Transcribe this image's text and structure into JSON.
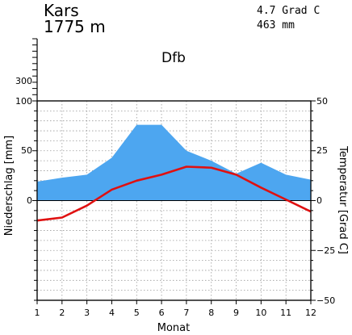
{
  "station": {
    "name": "Kars",
    "elevation": "1775 m"
  },
  "stats": {
    "temperature": "4.7 Grad C",
    "precipitation": "463 mm"
  },
  "climate_class": "Dfb",
  "chart_data": {
    "type": "area",
    "xlabel": "Monat",
    "x": [
      1,
      2,
      3,
      4,
      5,
      6,
      7,
      8,
      9,
      10,
      11,
      12
    ],
    "xlim": [
      1,
      12
    ],
    "xticks": [
      "1",
      "2",
      "3",
      "4",
      "5",
      "6",
      "7",
      "8",
      "9",
      "10",
      "11",
      "12"
    ],
    "left_axis": {
      "label": "Niederschlag [mm]",
      "ylim": [
        -100,
        100
      ],
      "ticks": [
        100,
        50,
        0
      ],
      "upper_ticks": [
        "300"
      ]
    },
    "right_axis": {
      "label": "Temperatur [Grad C]",
      "ylim": [
        -50,
        50
      ],
      "ticks": [
        "50",
        "25",
        "0",
        "−25",
        "−50"
      ]
    },
    "grid": true,
    "series": [
      {
        "kind": "area",
        "axis": "left",
        "color": "#4da6f0",
        "values": [
          19,
          23,
          26,
          43,
          76,
          76,
          50,
          40,
          27,
          38,
          26,
          21
        ]
      },
      {
        "kind": "line",
        "axis": "right",
        "color": "#e01010",
        "values": [
          -10,
          -8.5,
          -2.5,
          5.5,
          10,
          13,
          17,
          16.5,
          13,
          6.5,
          0.5,
          -5.5
        ]
      }
    ]
  }
}
